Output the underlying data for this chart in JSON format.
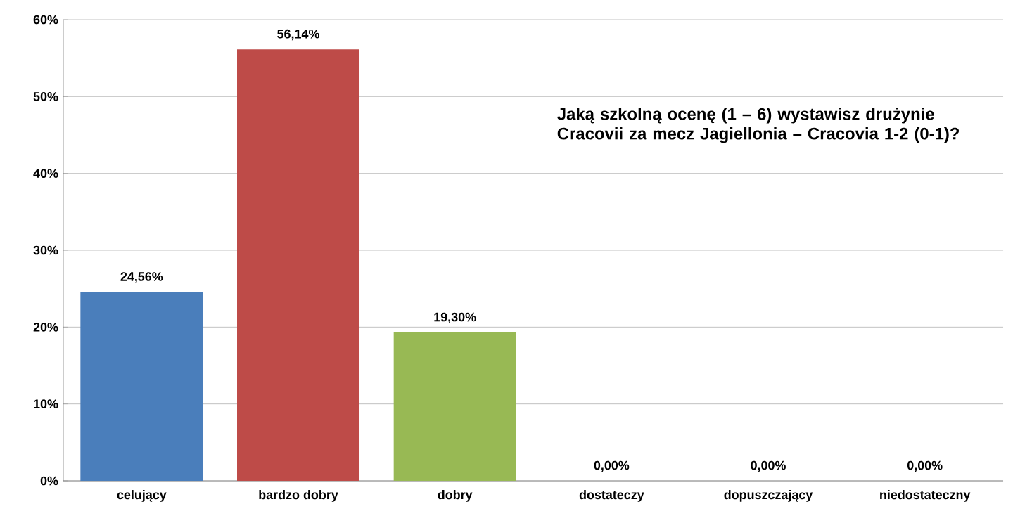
{
  "chart_data": {
    "type": "bar",
    "categories": [
      "celujący",
      "bardzo dobry",
      "dobry",
      "dostateczy",
      "dopuszczający",
      "niedostateczny"
    ],
    "values": [
      24.56,
      56.14,
      19.3,
      0,
      0,
      0
    ],
    "value_labels": [
      "24,56%",
      "56,14%",
      "19,30%",
      "0,00%",
      "0,00%",
      "0,00%"
    ],
    "colors": [
      "#4a7ebb",
      "#be4b48",
      "#98b954",
      "#4a7ebb",
      "#4a7ebb",
      "#4a7ebb"
    ],
    "ylim": [
      0,
      60
    ],
    "yticks": [
      {
        "value": 0,
        "label": "0%"
      },
      {
        "value": 10,
        "label": "10%"
      },
      {
        "value": 20,
        "label": "20%"
      },
      {
        "value": 30,
        "label": "30%"
      },
      {
        "value": 40,
        "label": "40%"
      },
      {
        "value": 50,
        "label": "50%"
      },
      {
        "value": 60,
        "label": "60%"
      }
    ],
    "grid": "y",
    "annotations": [
      "Jaką szkolną ocenę (1 – 6) wystawisz drużynie Cracovii za mecz Jagiellonia – Cracovia 1-2 (0-1)?"
    ]
  }
}
